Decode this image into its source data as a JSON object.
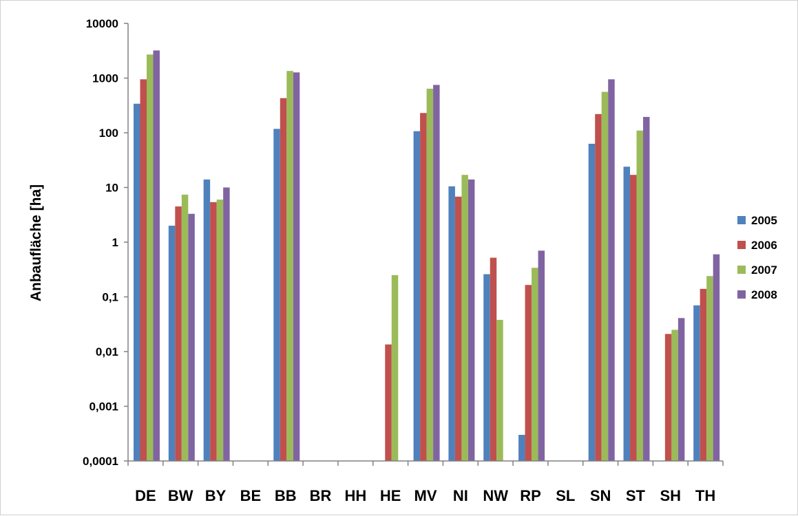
{
  "chart_data": {
    "type": "bar",
    "scale": "log",
    "title": "",
    "xlabel": "",
    "ylabel": "Anbaufläche [ha]",
    "ylim": [
      0.0001,
      10000
    ],
    "yticks": [
      "0,0001",
      "0,001",
      "0,01",
      "0,1",
      "1",
      "10",
      "100",
      "1000",
      "10000"
    ],
    "grid": false,
    "legend_position": "right",
    "categories": [
      "DE",
      "BW",
      "BY",
      "BE",
      "BB",
      "BR",
      "HH",
      "HE",
      "MV",
      "NI",
      "NW",
      "RP",
      "SL",
      "SN",
      "ST",
      "SH",
      "TH"
    ],
    "series": [
      {
        "name": "2005",
        "color": "#4f81bd",
        "values": [
          340,
          2,
          14,
          null,
          118,
          null,
          null,
          null,
          107,
          10.5,
          0.26,
          0.0003,
          null,
          63,
          24,
          null,
          0.07
        ]
      },
      {
        "name": "2006",
        "color": "#c0504d",
        "values": [
          950,
          4.5,
          5.4,
          null,
          430,
          null,
          null,
          0.0135,
          230,
          6.8,
          0.52,
          0.165,
          null,
          220,
          17,
          0.021,
          0.14
        ]
      },
      {
        "name": "2007",
        "color": "#9bbb59",
        "values": [
          2700,
          7.4,
          6,
          null,
          1350,
          null,
          null,
          0.25,
          640,
          17,
          0.038,
          0.34,
          null,
          560,
          110,
          0.025,
          0.24
        ]
      },
      {
        "name": "2008",
        "color": "#8064a2",
        "values": [
          3200,
          3.3,
          10,
          null,
          1270,
          null,
          null,
          null,
          750,
          14,
          null,
          0.7,
          null,
          950,
          195,
          0.041,
          0.6
        ]
      }
    ]
  }
}
